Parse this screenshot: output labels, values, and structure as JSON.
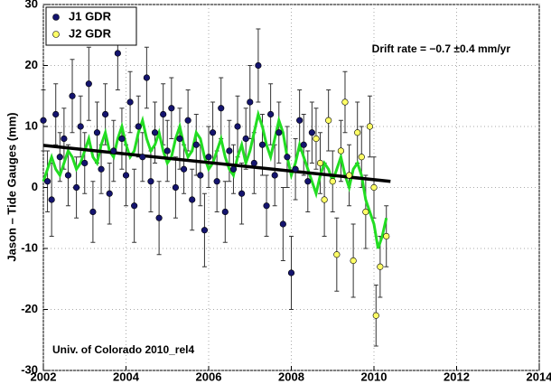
{
  "chart_data": {
    "type": "scatter",
    "ylabel": "Jason – Tide Gauges (mm)",
    "annotations": [
      "Drift rate = −0.7 ±0.4 mm/yr",
      "Univ. of Colorado 2010_rel4"
    ],
    "xlim": [
      2002,
      2014
    ],
    "xticks": [
      2002,
      2004,
      2006,
      2008,
      2010,
      2012,
      2014
    ],
    "ylim": [
      -30,
      30
    ],
    "yticks": [
      -30,
      -20,
      -10,
      0,
      10,
      20,
      30
    ],
    "grid": true,
    "legend": "upper left",
    "series": [
      {
        "name": "J1 GDR",
        "color": "#14146e",
        "x": [
          2002.0,
          2002.1,
          2002.2,
          2002.3,
          2002.4,
          2002.5,
          2002.6,
          2002.7,
          2002.8,
          2002.9,
          2003.0,
          2003.1,
          2003.2,
          2003.3,
          2003.4,
          2003.5,
          2003.6,
          2003.7,
          2003.8,
          2003.9,
          2004.0,
          2004.1,
          2004.2,
          2004.3,
          2004.4,
          2004.5,
          2004.6,
          2004.7,
          2004.8,
          2004.9,
          2005.0,
          2005.1,
          2005.2,
          2005.3,
          2005.4,
          2005.5,
          2005.6,
          2005.7,
          2005.8,
          2005.9,
          2006.0,
          2006.1,
          2006.2,
          2006.3,
          2006.4,
          2006.5,
          2006.6,
          2006.7,
          2006.8,
          2006.9,
          2007.0,
          2007.1,
          2007.2,
          2007.3,
          2007.4,
          2007.5,
          2007.6,
          2007.7,
          2007.8,
          2007.9,
          2008.0,
          2008.1,
          2008.2,
          2008.3,
          2008.4,
          2008.5
        ],
        "values": [
          11,
          1,
          -2,
          12,
          5,
          8,
          2,
          15,
          0,
          10,
          4,
          17,
          -4,
          9,
          3,
          12,
          -1,
          6,
          22,
          8,
          2,
          14,
          -3,
          10,
          5,
          18,
          1,
          9,
          -5,
          12,
          6,
          13,
          0,
          8,
          3,
          11,
          -2,
          7,
          2,
          -7,
          5,
          9,
          1,
          13,
          -4,
          6,
          3,
          10,
          -1,
          8,
          14,
          4,
          20,
          7,
          -3,
          12,
          2,
          9,
          -6,
          5,
          -14,
          3,
          11,
          7,
          1,
          9
        ],
        "errors": [
          5,
          5,
          6,
          5,
          4,
          5,
          5,
          6,
          5,
          5,
          5,
          6,
          5,
          5,
          4,
          5,
          5,
          5,
          6,
          5,
          5,
          5,
          6,
          5,
          4,
          5,
          5,
          5,
          6,
          5,
          5,
          5,
          5,
          5,
          4,
          5,
          5,
          5,
          5,
          6,
          5,
          5,
          5,
          5,
          5,
          5,
          4,
          5,
          5,
          5,
          6,
          5,
          6,
          5,
          5,
          5,
          5,
          5,
          6,
          5,
          6,
          5,
          5,
          5,
          5,
          5
        ]
      },
      {
        "name": "J2 GDR",
        "color": "#ffff66",
        "x": [
          2008.6,
          2008.7,
          2008.8,
          2008.9,
          2009.0,
          2009.1,
          2009.2,
          2009.3,
          2009.4,
          2009.5,
          2009.6,
          2009.7,
          2009.8,
          2009.9,
          2010.0,
          2010.05,
          2010.15,
          2010.3
        ],
        "values": [
          8,
          4,
          -2,
          11,
          1,
          -11,
          6,
          14,
          2,
          -12,
          9,
          5,
          -4,
          10,
          0,
          -21,
          -13,
          -8
        ],
        "errors": [
          5,
          5,
          6,
          5,
          5,
          6,
          5,
          5,
          5,
          6,
          5,
          5,
          6,
          5,
          5,
          5,
          5,
          5
        ]
      }
    ],
    "smoothed": {
      "color": "#22dd22",
      "x": [
        2002.0,
        2002.1,
        2002.2,
        2002.3,
        2002.4,
        2002.5,
        2002.6,
        2002.7,
        2002.8,
        2002.9,
        2003.0,
        2003.1,
        2003.2,
        2003.3,
        2003.4,
        2003.5,
        2003.6,
        2003.7,
        2003.8,
        2003.9,
        2004.0,
        2004.1,
        2004.2,
        2004.3,
        2004.4,
        2004.5,
        2004.6,
        2004.7,
        2004.8,
        2004.9,
        2005.0,
        2005.1,
        2005.2,
        2005.3,
        2005.4,
        2005.5,
        2005.6,
        2005.7,
        2005.8,
        2005.9,
        2006.0,
        2006.1,
        2006.2,
        2006.3,
        2006.4,
        2006.5,
        2006.6,
        2006.7,
        2006.8,
        2006.9,
        2007.0,
        2007.1,
        2007.2,
        2007.3,
        2007.4,
        2007.5,
        2007.6,
        2007.7,
        2007.8,
        2007.9,
        2008.0,
        2008.1,
        2008.2,
        2008.3,
        2008.4,
        2008.5,
        2008.6,
        2008.7,
        2008.8,
        2008.9,
        2009.0,
        2009.1,
        2009.2,
        2009.3,
        2009.4,
        2009.5,
        2009.6,
        2009.7,
        2009.8,
        2009.9,
        2010.0,
        2010.1,
        2010.2,
        2010.3
      ],
      "values": [
        1,
        3,
        5,
        3,
        2,
        4,
        6,
        5,
        3,
        4,
        6,
        8,
        5,
        4,
        7,
        9,
        6,
        5,
        8,
        10,
        7,
        5,
        6,
        9,
        11,
        8,
        6,
        7,
        9,
        6,
        4,
        5,
        8,
        10,
        7,
        5,
        6,
        9,
        8,
        5,
        3,
        4,
        6,
        8,
        5,
        3,
        2,
        5,
        7,
        4,
        6,
        9,
        12,
        10,
        7,
        5,
        8,
        11,
        9,
        5,
        2,
        4,
        7,
        5,
        3,
        1,
        -1,
        2,
        4,
        3,
        1,
        3,
        5,
        2,
        0,
        3,
        4,
        2,
        -2,
        -4,
        -6,
        -10,
        -8,
        -5
      ]
    },
    "trend": {
      "color": "#000000",
      "x": [
        2002.0,
        2010.4
      ],
      "values": [
        6.9,
        1.0
      ]
    }
  }
}
